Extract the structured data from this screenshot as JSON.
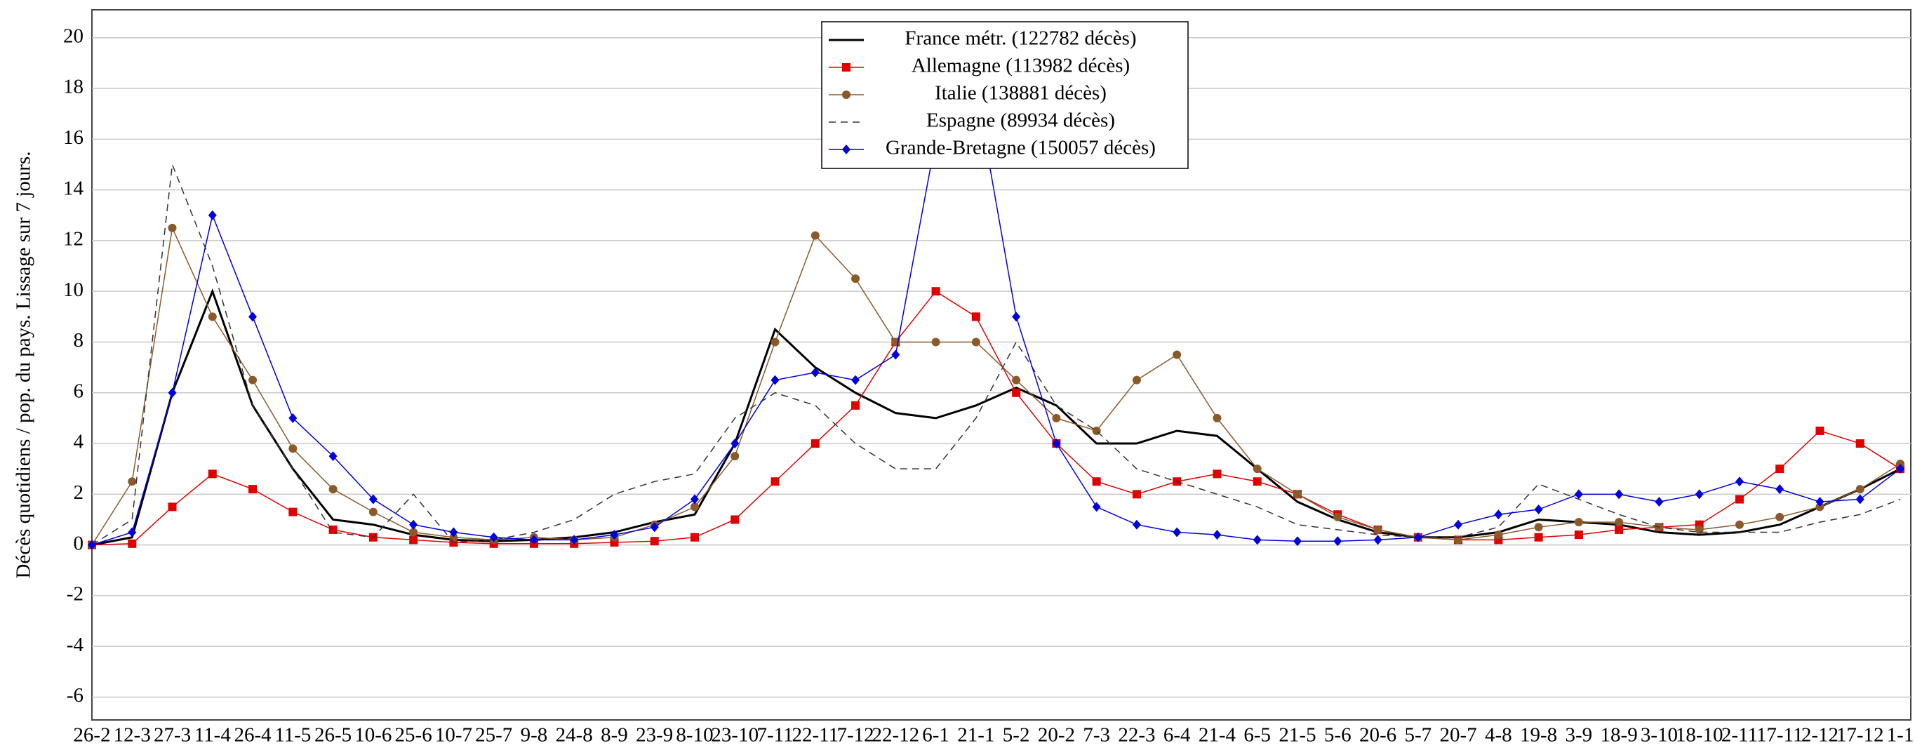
{
  "chart_data": {
    "type": "line",
    "y_label": "Décès quotidiens / pop. du pays. Lissage sur 7 jours.",
    "categories": [
      "26-2",
      "12-3",
      "27-3",
      "11-4",
      "26-4",
      "11-5",
      "26-5",
      "10-6",
      "25-6",
      "10-7",
      "25-7",
      "9-8",
      "24-8",
      "8-9",
      "23-9",
      "8-10",
      "23-10",
      "7-11",
      "22-11",
      "7-12",
      "22-12",
      "6-1",
      "21-1",
      "5-2",
      "20-2",
      "7-3",
      "22-3",
      "6-4",
      "21-4",
      "6-5",
      "21-5",
      "5-6",
      "20-6",
      "5-7",
      "20-7",
      "4-8",
      "19-8",
      "3-9",
      "18-9",
      "3-10",
      "18-10",
      "2-11",
      "17-11",
      "2-12",
      "17-12",
      "1-1"
    ],
    "series": [
      {
        "name": "France métr. (122782 décès)",
        "color": "#000000",
        "marker": "none",
        "dash": false,
        "width": 3,
        "values": [
          0,
          0.3,
          6,
          10,
          5.5,
          3,
          1,
          0.8,
          0.4,
          0.2,
          0.15,
          0.2,
          0.3,
          0.5,
          0.9,
          1.2,
          4,
          8.5,
          7,
          6,
          5.2,
          5,
          5.5,
          6.2,
          5.5,
          4,
          4,
          4.5,
          4.3,
          3,
          1.7,
          1,
          0.5,
          0.3,
          0.3,
          0.5,
          1,
          0.9,
          0.8,
          0.5,
          0.4,
          0.5,
          0.8,
          1.5,
          2.2,
          3
        ]
      },
      {
        "name": "Allemagne (113982 décès)",
        "color": "#e00000",
        "marker": "square",
        "dash": false,
        "width": 1.5,
        "values": [
          0,
          0.05,
          1.5,
          2.8,
          2.2,
          1.3,
          0.6,
          0.3,
          0.2,
          0.1,
          0.05,
          0.05,
          0.05,
          0.1,
          0.15,
          0.3,
          1,
          2.5,
          4,
          5.5,
          8,
          10,
          9,
          6,
          4,
          2.5,
          2,
          2.5,
          2.8,
          2.5,
          2,
          1.2,
          0.6,
          0.3,
          0.2,
          0.2,
          0.3,
          0.4,
          0.6,
          0.7,
          0.8,
          1.8,
          3,
          4.5,
          4,
          3
        ]
      },
      {
        "name": "Italie (138881 décès)",
        "color": "#8b5a2b",
        "marker": "circle",
        "dash": false,
        "width": 1.5,
        "values": [
          0,
          2.5,
          12.5,
          9,
          6.5,
          3.8,
          2.2,
          1.3,
          0.5,
          0.3,
          0.2,
          0.3,
          0.2,
          0.3,
          0.8,
          1.5,
          3.5,
          8,
          12.2,
          10.5,
          8,
          8,
          8,
          6.5,
          5,
          4.5,
          6.5,
          7.5,
          5,
          3,
          2,
          1.1,
          0.6,
          0.3,
          0.2,
          0.4,
          0.7,
          0.9,
          0.9,
          0.7,
          0.6,
          0.8,
          1.1,
          1.5,
          2.2,
          3.2
        ]
      },
      {
        "name": "Espagne (89934 décès)",
        "color": "#333333",
        "marker": "none",
        "dash": true,
        "width": 1.5,
        "values": [
          0,
          1,
          15,
          11,
          5.5,
          3,
          0.5,
          0.3,
          2,
          0.1,
          0.2,
          0.5,
          1,
          2,
          2.5,
          2.8,
          5,
          6,
          5.5,
          4,
          3,
          3,
          5,
          8,
          5.5,
          4.5,
          3,
          2.5,
          2,
          1.5,
          0.8,
          0.6,
          0.4,
          0.3,
          0.3,
          0.7,
          2.4,
          1.8,
          1.2,
          0.7,
          0.5,
          0.5,
          0.5,
          0.9,
          1.2,
          1.8
        ]
      },
      {
        "name": "Grande-Bretagne (150057 décès)",
        "color": "#0000dd",
        "marker": "diamond",
        "dash": false,
        "width": 1.5,
        "values": [
          0,
          0.5,
          6,
          13,
          9,
          5,
          3.5,
          1.8,
          0.8,
          0.5,
          0.3,
          0.2,
          0.2,
          0.4,
          0.7,
          1.8,
          4,
          6.5,
          6.8,
          6.5,
          7.5,
          16,
          18,
          9,
          4,
          1.5,
          0.8,
          0.5,
          0.4,
          0.2,
          0.15,
          0.15,
          0.2,
          0.3,
          0.8,
          1.2,
          1.4,
          2,
          2,
          1.7,
          2,
          2.5,
          2.2,
          1.7,
          1.8,
          3
        ]
      }
    ],
    "ylim": [
      -6.9,
      21.1
    ],
    "yticks": [
      -6,
      -4,
      -2,
      0,
      2,
      4,
      6,
      8,
      10,
      12,
      14,
      16,
      18,
      20
    ],
    "grid": true,
    "legend_position": "top-center"
  }
}
